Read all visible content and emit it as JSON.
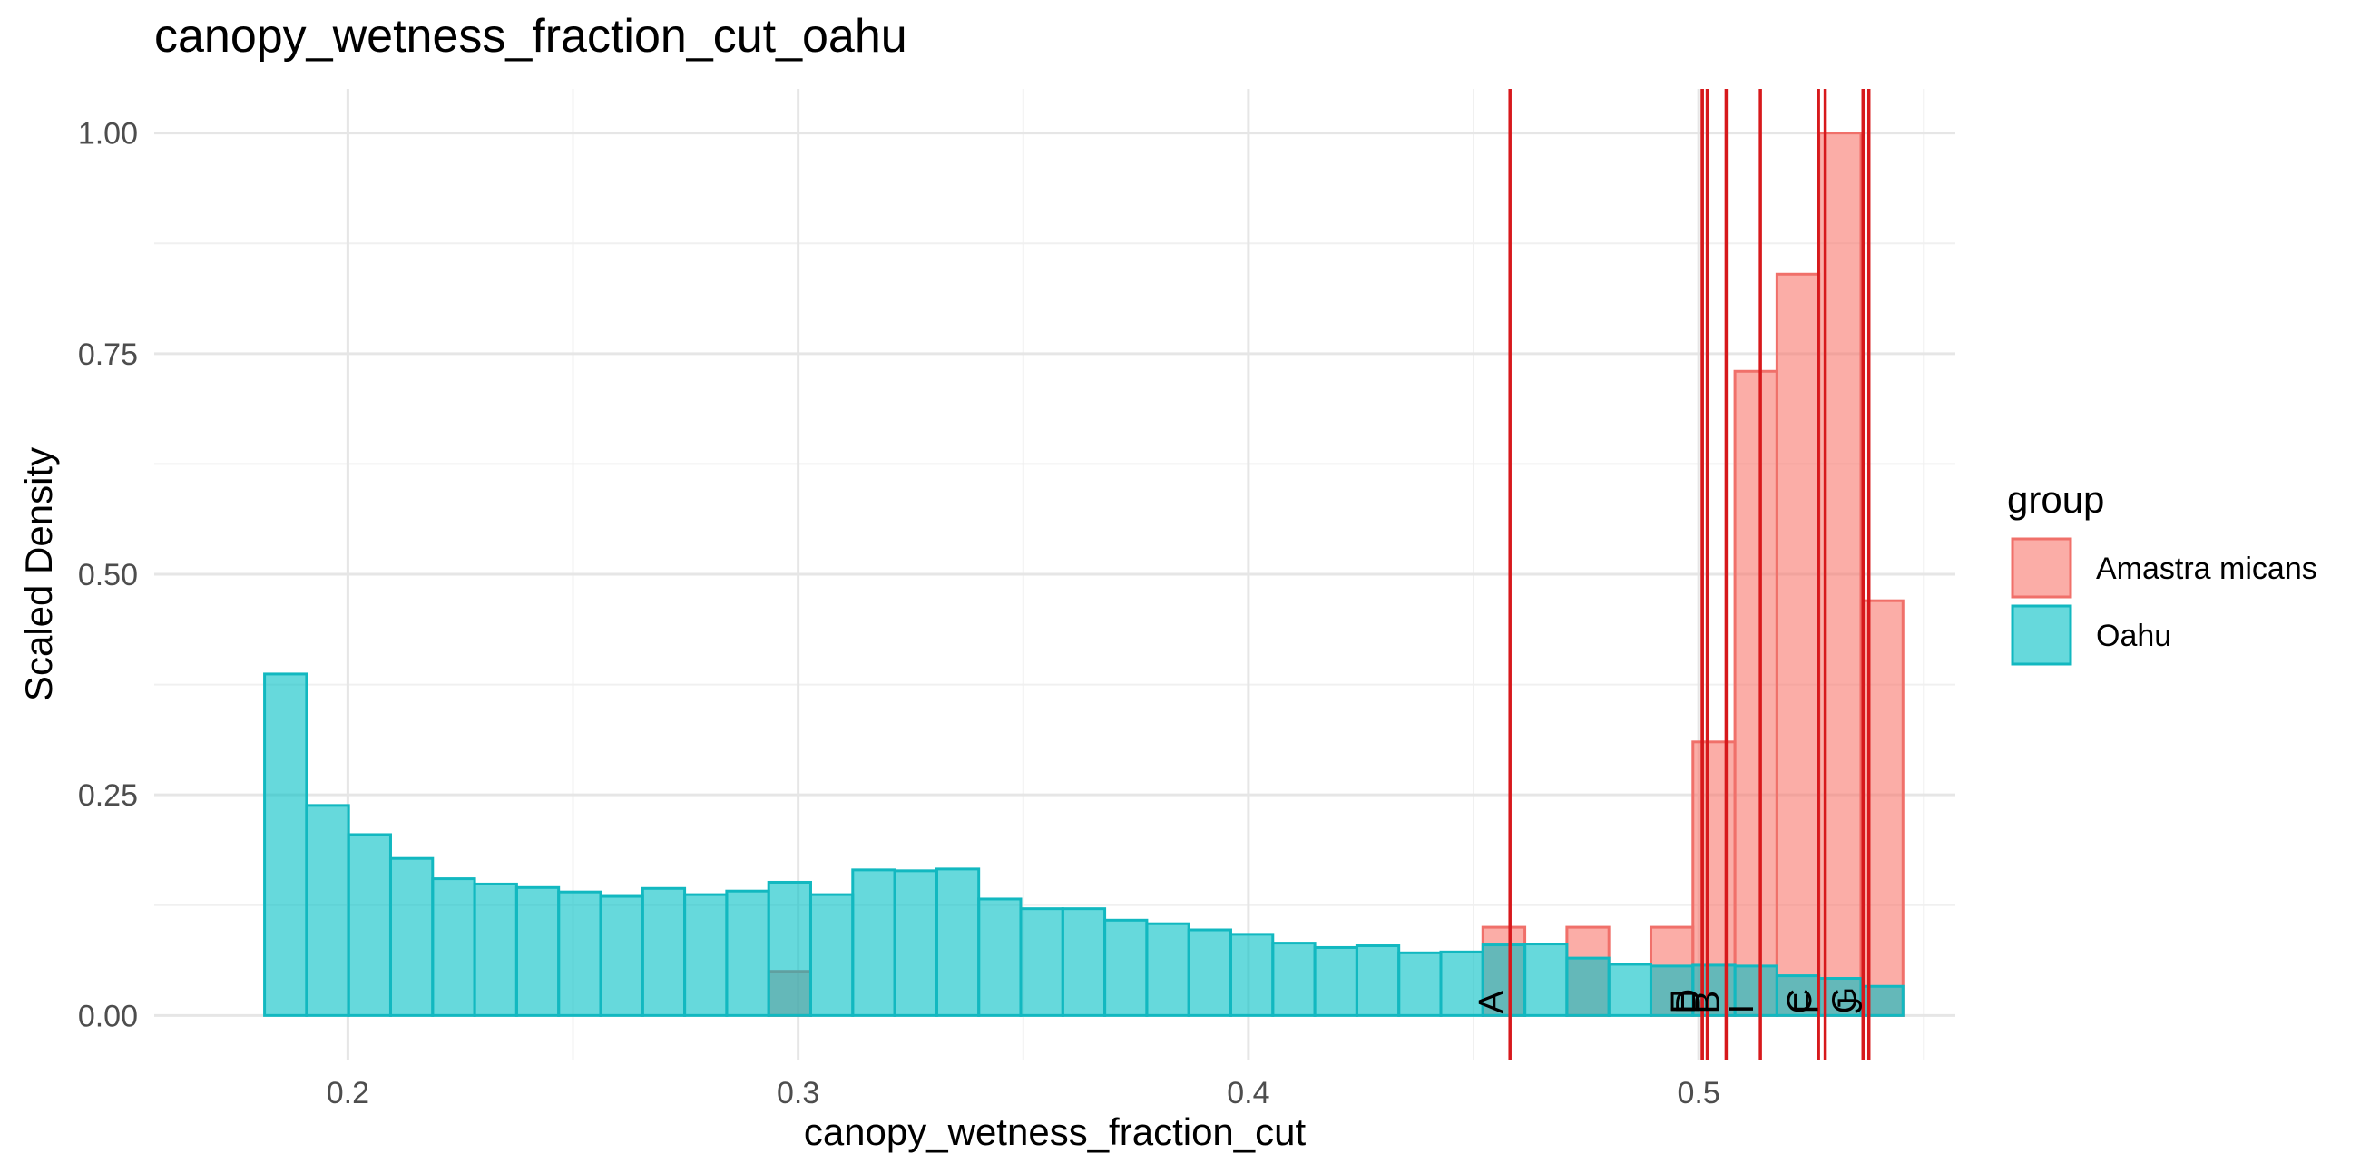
{
  "chart_data": {
    "type": "bar",
    "title": "canopy_wetness_fraction_cut_oahu",
    "xlabel": "canopy_wetness_fraction_cut",
    "ylabel": "Scaled Density",
    "xlim": [
      0.157,
      0.557
    ],
    "ylim": [
      -0.05,
      1.05
    ],
    "x_ticks": [
      0.2,
      0.3,
      0.4,
      0.5
    ],
    "x_tick_labels": [
      "0.2",
      "0.3",
      "0.4",
      "0.5"
    ],
    "y_ticks": [
      0,
      0.25,
      0.5,
      0.75,
      1.0
    ],
    "y_tick_labels": [
      "0.00",
      "0.25",
      "0.50",
      "0.75",
      "1.00"
    ],
    "grid": true,
    "bin_width": 0.00933,
    "bin_start": 0.1815,
    "legend": {
      "title": "group",
      "position": "right"
    },
    "series": [
      {
        "name": "Amastra micans",
        "fill": "#F8766D",
        "values": [
          0,
          0,
          0,
          0,
          0,
          0,
          0,
          0,
          0,
          0,
          0,
          0,
          0.05,
          0,
          0,
          0,
          0,
          0,
          0,
          0,
          0,
          0,
          0,
          0,
          0,
          0,
          0,
          0,
          0,
          0.1,
          0,
          0.1,
          0,
          0.1,
          0.31,
          0.73,
          0.84,
          1.0,
          0.47
        ]
      },
      {
        "name": "Oahu",
        "fill": "#00BFC4",
        "values": [
          0.387,
          0.238,
          0.205,
          0.178,
          0.155,
          0.149,
          0.145,
          0.14,
          0.135,
          0.144,
          0.137,
          0.141,
          0.151,
          0.137,
          0.165,
          0.164,
          0.166,
          0.132,
          0.121,
          0.121,
          0.108,
          0.104,
          0.097,
          0.092,
          0.082,
          0.077,
          0.079,
          0.071,
          0.072,
          0.08,
          0.081,
          0.065,
          0.058,
          0.056,
          0.057,
          0.056,
          0.045,
          0.042,
          0.033
        ]
      }
    ],
    "vlines": {
      "color": "#D7191C",
      "lines": [
        {
          "x": 0.4581,
          "label": "A"
        },
        {
          "x": 0.5061,
          "label": "B"
        },
        {
          "x": 0.5266,
          "label": "C"
        },
        {
          "x": 0.5019,
          "label": "D"
        },
        {
          "x": 0.5008,
          "label": "E"
        },
        {
          "x": 0.5281,
          "label": "F"
        },
        {
          "x": 0.5365,
          "label": "G"
        },
        {
          "x": 0.5008,
          "label": "H"
        },
        {
          "x": 0.5137,
          "label": "I"
        },
        {
          "x": 0.5378,
          "label": "J"
        }
      ]
    }
  }
}
